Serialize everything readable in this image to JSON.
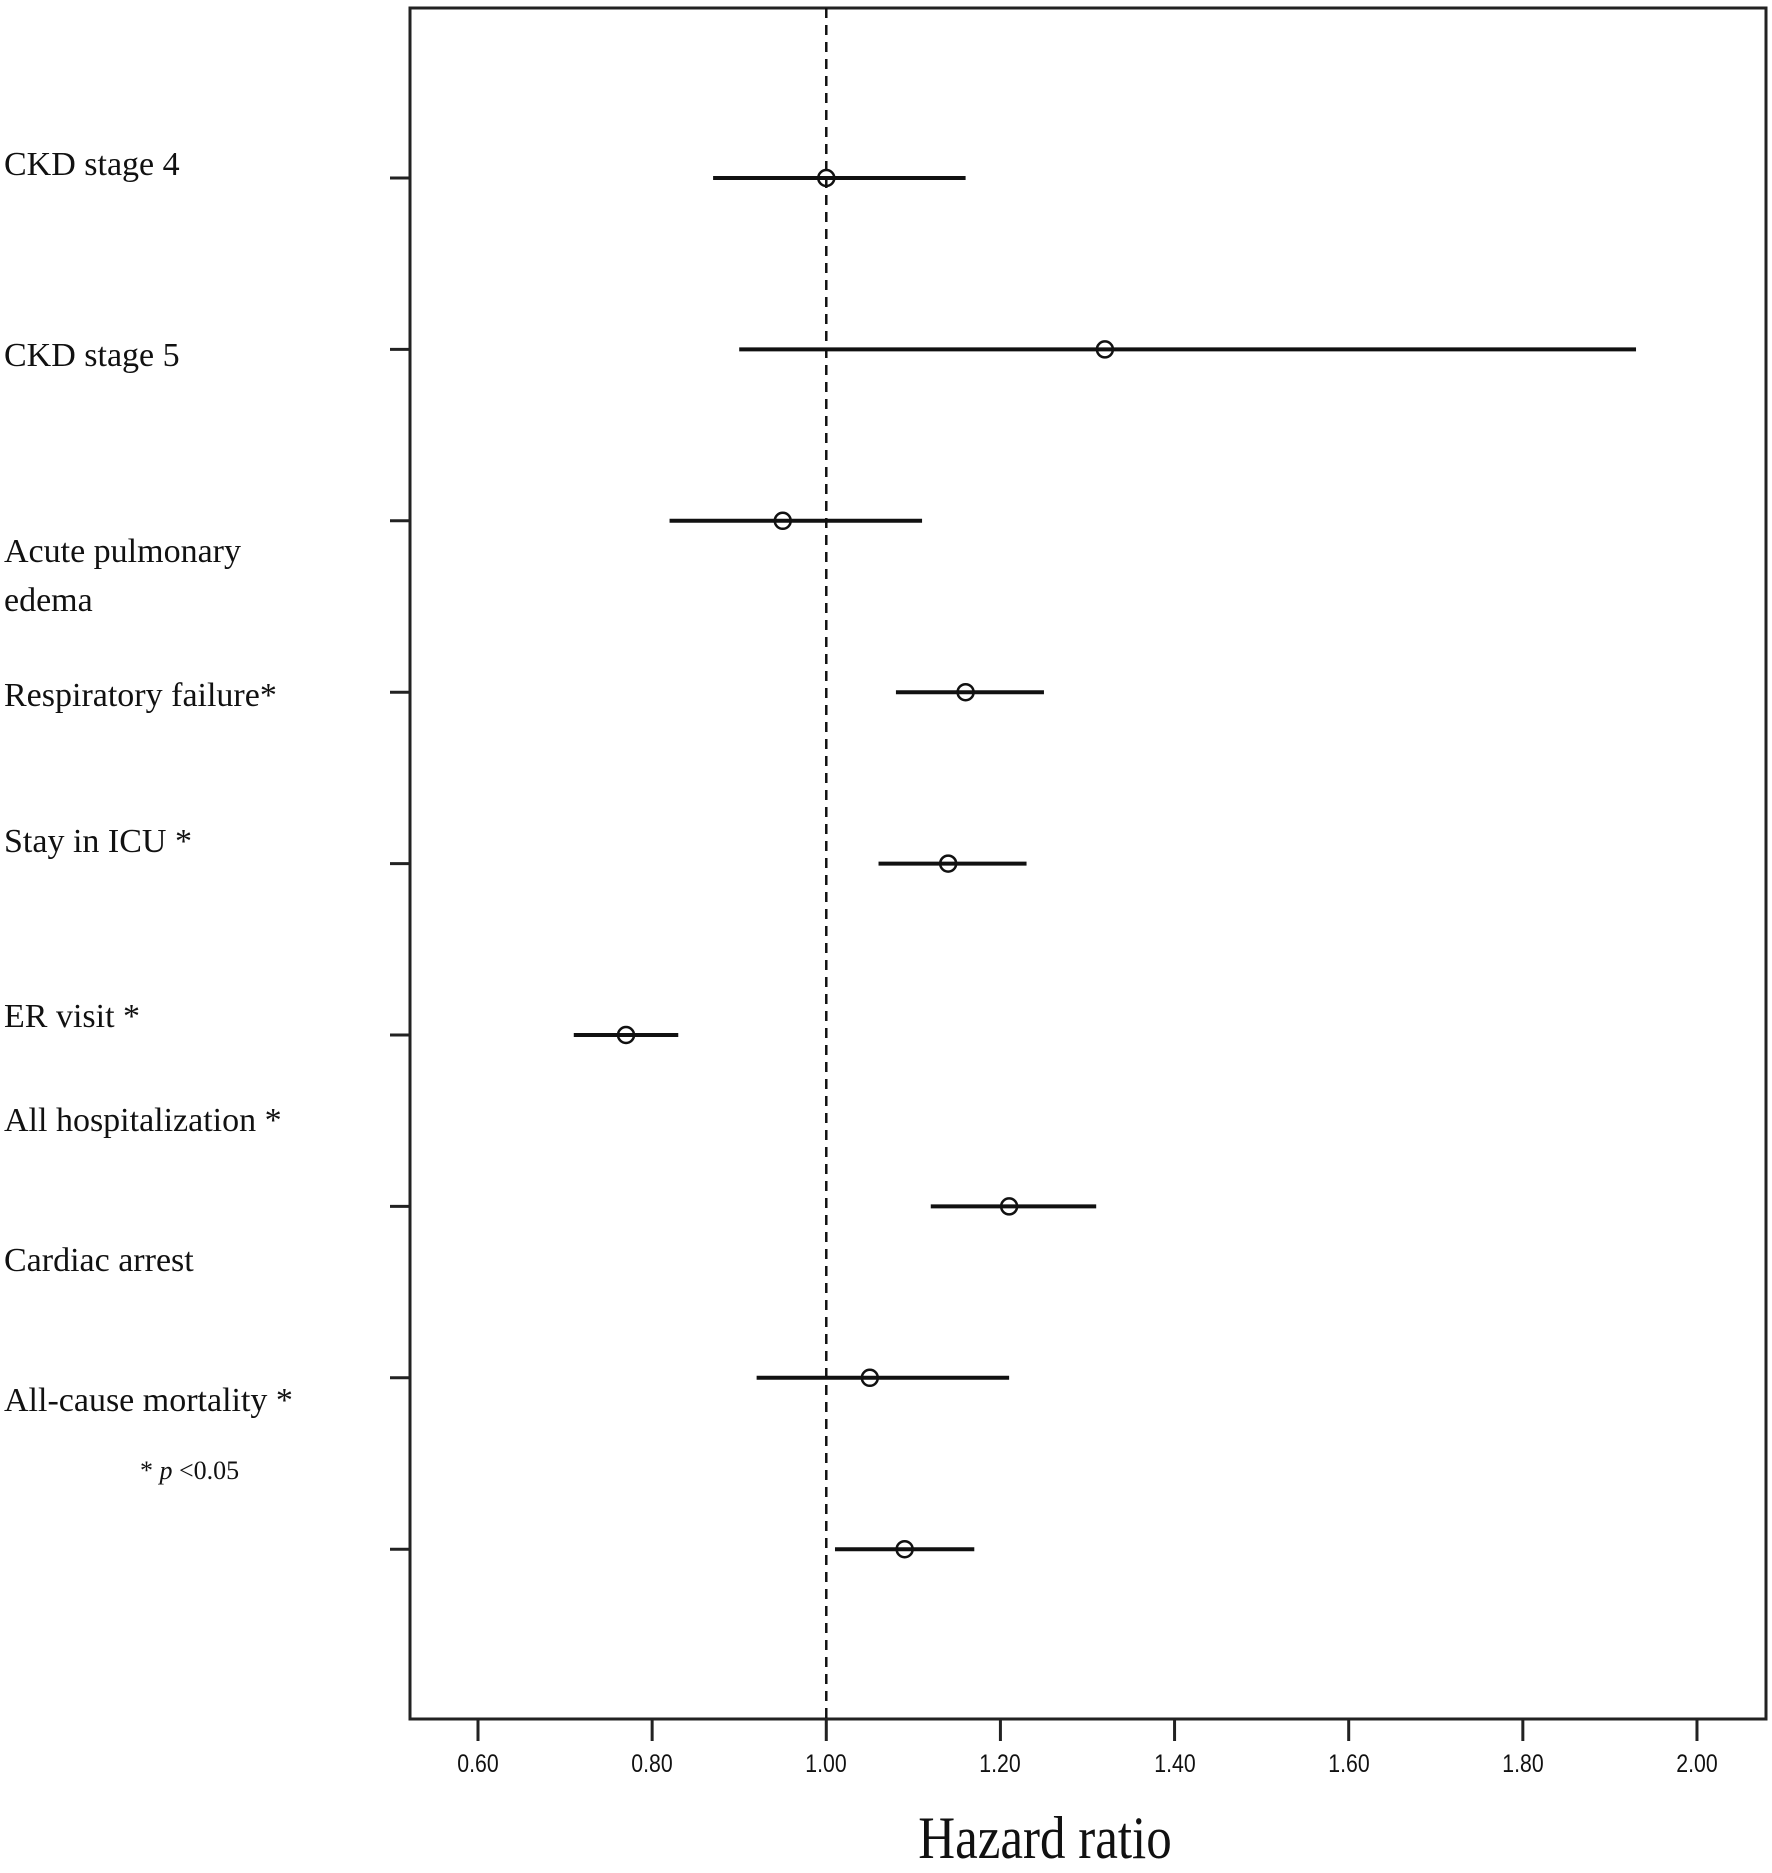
{
  "chart_data": {
    "type": "forest",
    "title": "",
    "xlabel": "Hazard ratio",
    "ylabel": "",
    "xlim": [
      0.52,
      2.06
    ],
    "x_ticks": [
      0.6,
      0.8,
      1.0,
      1.2,
      1.4,
      1.6,
      1.8,
      2.0
    ],
    "x_tick_labels": [
      "0.60",
      "0.80",
      "1.00",
      "1.20",
      "1.40",
      "1.60",
      "1.80",
      "2.00"
    ],
    "reference_line": 1.0,
    "grid": false,
    "legend": null,
    "footnote": {
      "symbol": "*",
      "var": "p",
      "text": "<0.05"
    },
    "rows": [
      {
        "label": "CKD stage 4",
        "lines": [
          "CKD stage 4"
        ],
        "hr": 1.0,
        "ci_low": 0.87,
        "ci_high": 1.16,
        "significant": false
      },
      {
        "label": "CKD stage 5",
        "lines": [
          "CKD stage 5"
        ],
        "hr": 1.32,
        "ci_low": 0.9,
        "ci_high": 1.93,
        "significant": false
      },
      {
        "label": "Acute pulmonary edema",
        "lines": [
          "Acute pulmonary",
          "edema"
        ],
        "hr": 0.95,
        "ci_low": 0.82,
        "ci_high": 1.11,
        "significant": false
      },
      {
        "label": "Respiratory failure*",
        "lines": [
          "Respiratory failure*"
        ],
        "hr": 1.16,
        "ci_low": 1.08,
        "ci_high": 1.25,
        "significant": true
      },
      {
        "label": "Stay in ICU *",
        "lines": [
          "Stay in ICU *"
        ],
        "hr": 1.14,
        "ci_low": 1.06,
        "ci_high": 1.23,
        "significant": true
      },
      {
        "label": "ER visit *",
        "lines": [
          "ER visit *"
        ],
        "hr": 0.77,
        "ci_low": 0.71,
        "ci_high": 0.83,
        "significant": true
      },
      {
        "label": "All hospitalization *",
        "lines": [
          "All hospitalization *"
        ],
        "hr": 1.21,
        "ci_low": 1.12,
        "ci_high": 1.31,
        "significant": true
      },
      {
        "label": "Cardiac arrest",
        "lines": [
          "Cardiac arrest"
        ],
        "hr": 1.05,
        "ci_low": 0.92,
        "ci_high": 1.21,
        "significant": false
      },
      {
        "label": "All-cause mortality *",
        "lines": [
          "All-cause mortality *"
        ],
        "hr": 1.09,
        "ci_low": 1.01,
        "ci_high": 1.17,
        "significant": true
      }
    ]
  },
  "labels": {
    "row_0": "CKD stage 4",
    "row_1": "CKD stage 5",
    "row_2_line1": "Acute pulmonary",
    "row_2_line2": "edema",
    "row_3": "Respiratory failure*",
    "row_4": "Stay in ICU *",
    "row_5": "ER visit *",
    "row_6": "All hospitalization *",
    "row_7": "Cardiac arrest",
    "row_8": "All-cause mortality *",
    "footnote_star": "* ",
    "footnote_p": "p",
    "footnote_rest": " <0.05",
    "x_title": "Hazard ratio"
  },
  "style": {
    "line_color": "#111111",
    "frame_color": "#222222",
    "background": "#ffffff"
  }
}
